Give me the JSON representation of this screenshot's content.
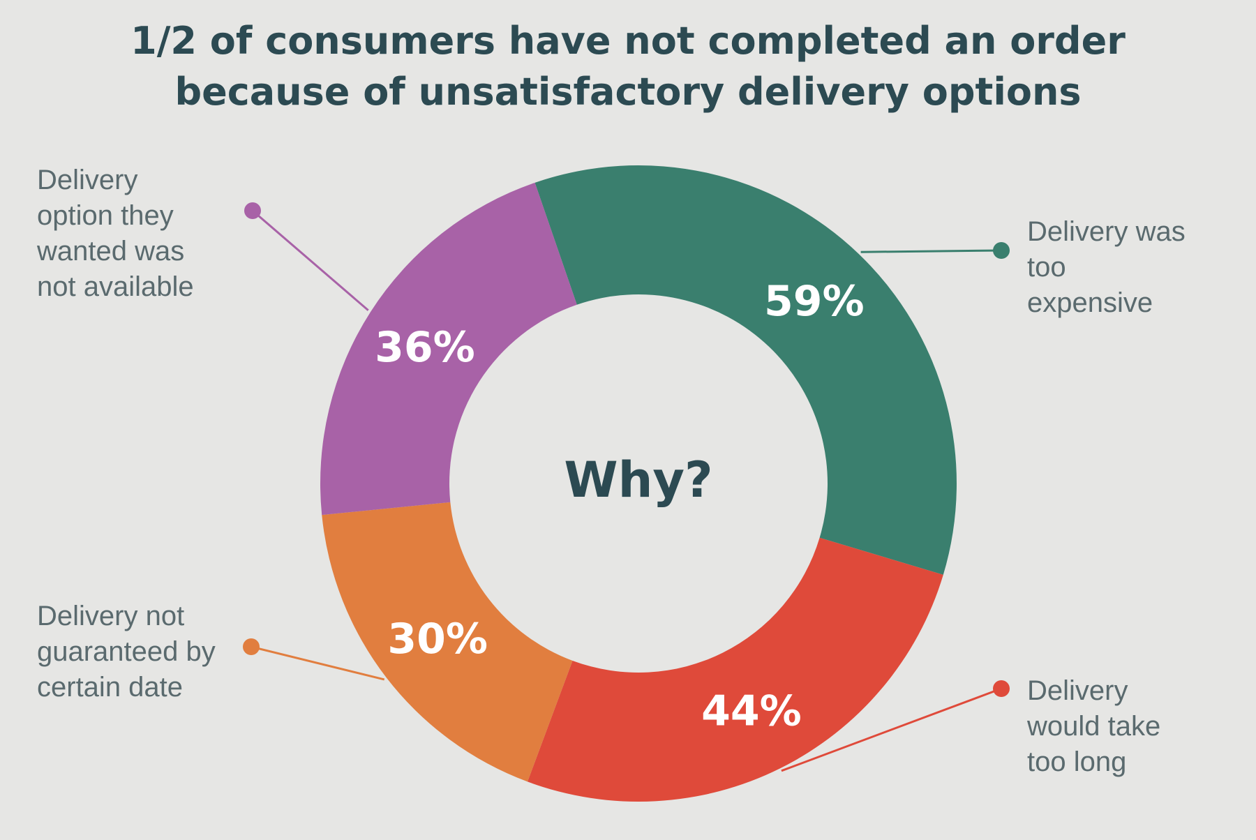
{
  "title_lines": [
    "1/2 of consumers have not completed an order",
    "because of unsatisfactory delivery options"
  ],
  "chart_data": {
    "type": "pie",
    "variant": "donut",
    "title": "1/2 of consumers have not completed an order because of unsatisfactory delivery options",
    "center_label": "Why?",
    "slices": [
      {
        "label": "Delivery was too expensive",
        "value": 59,
        "display": "59%",
        "color": "#3a7f6e"
      },
      {
        "label": "Delivery would take too long",
        "value": 44,
        "display": "44%",
        "color": "#df4a3a"
      },
      {
        "label": "Delivery not guaranteed by certain date",
        "value": 30,
        "display": "30%",
        "color": "#e17e3f"
      },
      {
        "label": "Delivery option they wanted was not available",
        "value": 36,
        "display": "36%",
        "color": "#a862a7"
      }
    ],
    "callouts": {
      "expensive": "Delivery was\ntoo\nexpensive",
      "too_long": "Delivery\nwould take\ntoo long",
      "not_guaranteed": "Delivery not\nguaranteed by\ncertain date",
      "not_available": "Delivery\noption they\nwanted was\nnot available"
    }
  }
}
